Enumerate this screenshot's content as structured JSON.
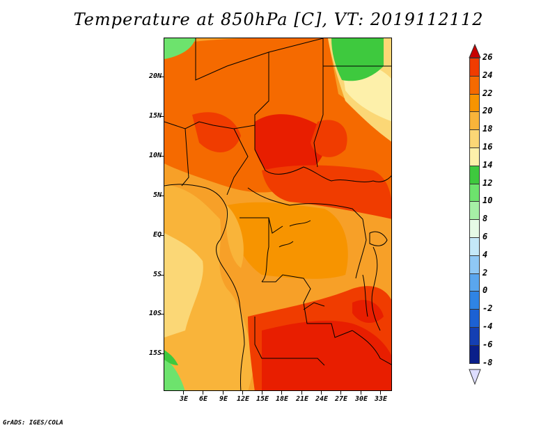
{
  "title": "Temperature at 850hPa [C], VT: 2019112112",
  "credit": "GrADS: IGES/COLA",
  "map": {
    "region": "Central Africa",
    "lat_labels": [
      "20N",
      "15N",
      "10N",
      "5N",
      "EQ",
      "5S",
      "10S",
      "15S"
    ],
    "lon_labels": [
      "3E",
      "6E",
      "9E",
      "12E",
      "15E",
      "18E",
      "21E",
      "24E",
      "27E",
      "30E",
      "33E"
    ]
  },
  "colorbar": {
    "labels": [
      "26",
      "24",
      "22",
      "20",
      "18",
      "16",
      "14",
      "12",
      "10",
      "8",
      "6",
      "4",
      "2",
      "0",
      "-2",
      "-4",
      "-6",
      "-8"
    ],
    "colors": [
      "#e81e00",
      "#f03c00",
      "#f56a00",
      "#f79400",
      "#f9b43a",
      "#fbd776",
      "#fdf0aa",
      "#3ec93e",
      "#6de36d",
      "#a6f0a6",
      "#e6fae6",
      "#c4e8f8",
      "#8fc8f5",
      "#5aa6ee",
      "#2f84e4",
      "#1c61d3",
      "#143fb3",
      "#0a1f8a",
      "#000066"
    ],
    "over_color": "#c80000",
    "under_color": "#ddddff"
  }
}
